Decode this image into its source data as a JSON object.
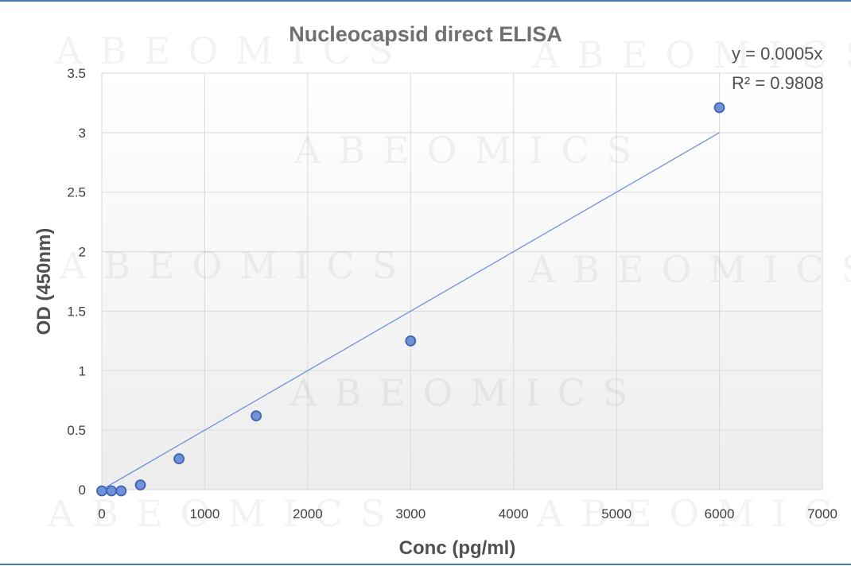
{
  "chart_data": {
    "type": "scatter",
    "title": "Nucleocapsid direct ELISA",
    "xlabel": "Conc (pg/ml)",
    "ylabel": "OD (450nm)",
    "xlim": [
      0,
      7000
    ],
    "ylim": [
      0,
      3.5
    ],
    "x_ticks": [
      0,
      1000,
      2000,
      3000,
      4000,
      5000,
      6000,
      7000
    ],
    "y_ticks": [
      0,
      0.5,
      1,
      1.5,
      2,
      2.5,
      3,
      3.5
    ],
    "x_tick_labels": [
      "0",
      "1000",
      "2000",
      "3000",
      "4000",
      "5000",
      "6000",
      "7000"
    ],
    "y_tick_labels": [
      "0",
      "0.5",
      "1",
      "1.5",
      "2",
      "2.5",
      "3",
      "3.5"
    ],
    "grid": true,
    "series": [
      {
        "x": [
          0,
          94,
          188,
          375,
          750,
          1500,
          3000,
          6000
        ],
        "y": [
          -0.01,
          -0.01,
          -0.01,
          0.04,
          0.26,
          0.62,
          1.25,
          3.21
        ]
      }
    ],
    "trendline": {
      "type": "linear",
      "slope": 0.0005,
      "x_range": [
        0,
        6000
      ],
      "equation": "y = 0.0005x",
      "r_squared": "R² = 0.9808"
    },
    "watermark": "ABEOMICS",
    "colors": {
      "marker_fill": "#6f93d6",
      "marker_stroke": "#3e64b4",
      "trendline": "#6f93d6",
      "grid": "#d9d9d9",
      "frame": "#4a78b4"
    }
  }
}
